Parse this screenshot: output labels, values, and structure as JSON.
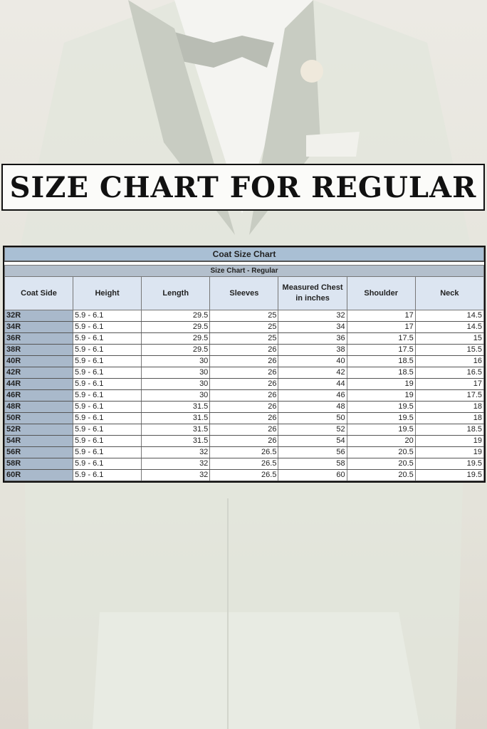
{
  "heading": "SIZE CHART FOR REGULAR",
  "chart_data": {
    "type": "table",
    "title": "Coat Size Chart",
    "subtitle": "Size Chart - Regular",
    "columns": [
      "Coat Side",
      "Height",
      "Length",
      "Sleeves",
      "Measured Chest in inches",
      "Shoulder",
      "Neck"
    ],
    "rows": [
      [
        "32R",
        "5.9 - 6.1",
        "29.5",
        "25",
        "32",
        "17",
        "14.5"
      ],
      [
        "34R",
        "5.9 - 6.1",
        "29.5",
        "25",
        "34",
        "17",
        "14.5"
      ],
      [
        "36R",
        "5.9 - 6.1",
        "29.5",
        "25",
        "36",
        "17.5",
        "15"
      ],
      [
        "38R",
        "5.9 - 6.1",
        "29.5",
        "26",
        "38",
        "17.5",
        "15.5"
      ],
      [
        "40R",
        "5.9 - 6.1",
        "30",
        "26",
        "40",
        "18.5",
        "16"
      ],
      [
        "42R",
        "5.9 - 6.1",
        "30",
        "26",
        "42",
        "18.5",
        "16.5"
      ],
      [
        "44R",
        "5.9 - 6.1",
        "30",
        "26",
        "44",
        "19",
        "17"
      ],
      [
        "46R",
        "5.9 - 6.1",
        "30",
        "26",
        "46",
        "19",
        "17.5"
      ],
      [
        "48R",
        "5.9 - 6.1",
        "31.5",
        "26",
        "48",
        "19.5",
        "18"
      ],
      [
        "50R",
        "5.9 - 6.1",
        "31.5",
        "26",
        "50",
        "19.5",
        "18"
      ],
      [
        "52R",
        "5.9 - 6.1",
        "31.5",
        "26",
        "52",
        "19.5",
        "18.5"
      ],
      [
        "54R",
        "5.9 - 6.1",
        "31.5",
        "26",
        "54",
        "20",
        "19"
      ],
      [
        "56R",
        "5.9 - 6.1",
        "32",
        "26.5",
        "56",
        "20.5",
        "19"
      ],
      [
        "58R",
        "5.9 - 6.1",
        "32",
        "26.5",
        "58",
        "20.5",
        "19.5"
      ],
      [
        "60R",
        "5.9 - 6.1",
        "32",
        "26.5",
        "60",
        "20.5",
        "19.5"
      ]
    ]
  },
  "colors": {
    "title_bar": "#a9bfd4",
    "subtitle_bar": "#b3bfcc",
    "header_bg": "#dce5f1",
    "size_col": "#a9b9cb"
  }
}
